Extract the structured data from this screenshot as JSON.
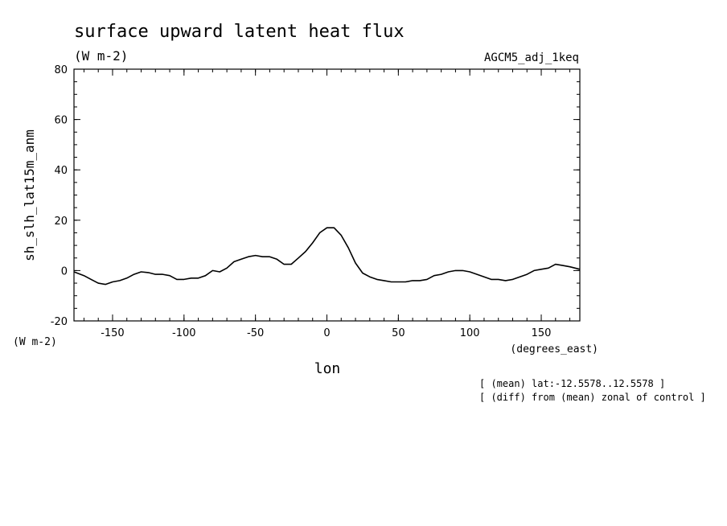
{
  "chart_data": {
    "type": "line",
    "title": "surface upward latent heat flux",
    "units_top": "(W m-2)",
    "run_name": "AGCM5_adj_1keq",
    "ylabel": "sh_slh_lat15m_anm",
    "yunits": "(W m-2)",
    "xlabel": "lon",
    "xunits": "(degrees_east)",
    "notes": [
      "[ (mean) lat:-12.5578..12.5578 ]",
      "[ (diff) from (mean) zonal of control ]"
    ],
    "xlim": [
      -177,
      177
    ],
    "ylim": [
      -20,
      80
    ],
    "xticks": [
      -150,
      -100,
      -50,
      0,
      50,
      100,
      150
    ],
    "yticks": [
      -20,
      0,
      20,
      40,
      60,
      80
    ],
    "xtick_labels": [
      "-150",
      "-100",
      "-50",
      "0",
      "50",
      "100",
      "150"
    ],
    "ytick_labels": [
      "-20",
      "0",
      "20",
      "40",
      "60",
      "80"
    ],
    "grid": false,
    "series": [
      {
        "x": [
          -177,
          -170,
          -165,
          -160,
          -155,
          -150,
          -145,
          -140,
          -135,
          -130,
          -125,
          -120,
          -115,
          -110,
          -105,
          -100,
          -95,
          -90,
          -85,
          -80,
          -75,
          -70,
          -65,
          -60,
          -55,
          -50,
          -45,
          -40,
          -35,
          -30,
          -25,
          -20,
          -15,
          -10,
          -5,
          0,
          5,
          10,
          15,
          20,
          25,
          30,
          35,
          40,
          45,
          50,
          55,
          60,
          65,
          70,
          75,
          80,
          85,
          90,
          95,
          100,
          105,
          110,
          115,
          120,
          125,
          130,
          135,
          140,
          145,
          150,
          155,
          160,
          165,
          170,
          177
        ],
        "values": [
          -0.5,
          -2,
          -3.5,
          -5,
          -5.5,
          -4.5,
          -4,
          -3,
          -1.5,
          -0.5,
          -0.8,
          -1.5,
          -1.5,
          -2,
          -3.5,
          -3.5,
          -3,
          -3,
          -2,
          0,
          -0.5,
          1,
          3.5,
          4.5,
          5.5,
          6,
          5.5,
          5.5,
          4.5,
          2.5,
          2.5,
          5,
          7.5,
          11,
          15,
          17,
          17,
          14,
          9,
          3,
          -1,
          -2.5,
          -3.5,
          -4,
          -4.5,
          -4.5,
          -4.5,
          -4,
          -4,
          -3.5,
          -2,
          -1.5,
          -0.5,
          0,
          0,
          -0.5,
          -1.5,
          -2.5,
          -3.5,
          -3.5,
          -4,
          -3.5,
          -2.5,
          -1.5,
          0,
          0.5,
          1,
          2.5,
          2,
          1.5,
          0.5
        ]
      }
    ]
  }
}
